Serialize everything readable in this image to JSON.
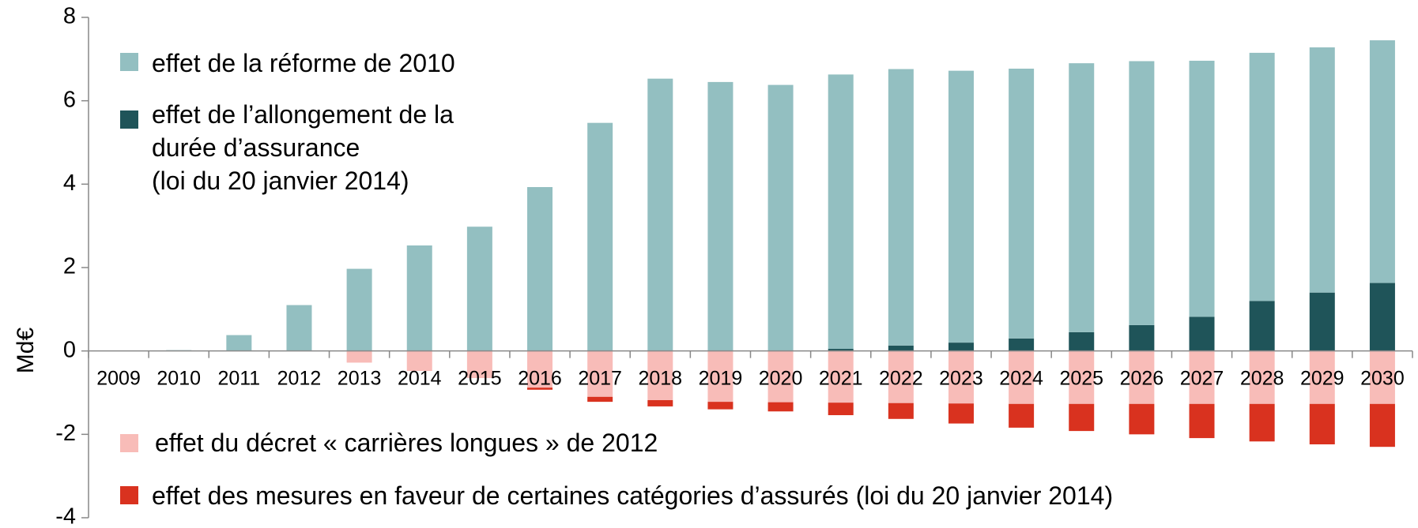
{
  "chart_data": {
    "type": "stacked_bar",
    "y_label": "Md€",
    "categories": [
      "2009",
      "2010",
      "2011",
      "2012",
      "2013",
      "2014",
      "2015",
      "2016",
      "2017",
      "2018",
      "2019",
      "2020",
      "2021",
      "2022",
      "2023",
      "2024",
      "2025",
      "2026",
      "2027",
      "2028",
      "2029",
      "2030"
    ],
    "series": [
      {
        "name": "effet de la réforme de 2010",
        "color": "#93bfc1",
        "values": [
          0,
          0.02,
          0.38,
          1.1,
          1.97,
          2.53,
          2.98,
          3.93,
          5.47,
          6.53,
          6.45,
          6.38,
          6.58,
          6.63,
          6.52,
          6.47,
          6.45,
          6.33,
          6.14,
          5.95,
          5.88,
          5.82
        ]
      },
      {
        "name": "effet de l’allongement de la\ndurée d’assurance\n(loi du 20 janvier 2014)",
        "color": "#1f5459",
        "values": [
          0,
          0,
          0,
          0,
          0,
          0,
          0,
          0,
          0,
          0,
          0,
          0,
          0.05,
          0.13,
          0.2,
          0.3,
          0.45,
          0.62,
          0.82,
          1.2,
          1.4,
          1.63
        ]
      },
      {
        "name": "effet du décret « carrières longues » de 2012",
        "color": "#f8bcb8",
        "values": [
          0,
          0,
          0,
          0,
          -0.28,
          -0.48,
          -0.65,
          -0.88,
          -1.1,
          -1.18,
          -1.22,
          -1.23,
          -1.24,
          -1.25,
          -1.26,
          -1.27,
          -1.27,
          -1.27,
          -1.27,
          -1.27,
          -1.27,
          -1.27
        ]
      },
      {
        "name": "effet des mesures en faveur de certaines catégories d’assurés (loi du 20 janvier 2014)",
        "color": "#d9321f",
        "values": [
          0,
          0,
          0,
          0,
          0,
          0,
          0,
          -0.05,
          -0.12,
          -0.15,
          -0.18,
          -0.22,
          -0.3,
          -0.38,
          -0.48,
          -0.57,
          -0.65,
          -0.73,
          -0.82,
          -0.9,
          -0.97,
          -1.03
        ]
      }
    ],
    "ylim": [
      -4,
      8
    ],
    "yticks": [
      -4,
      -2,
      0,
      2,
      4,
      6,
      8
    ]
  }
}
